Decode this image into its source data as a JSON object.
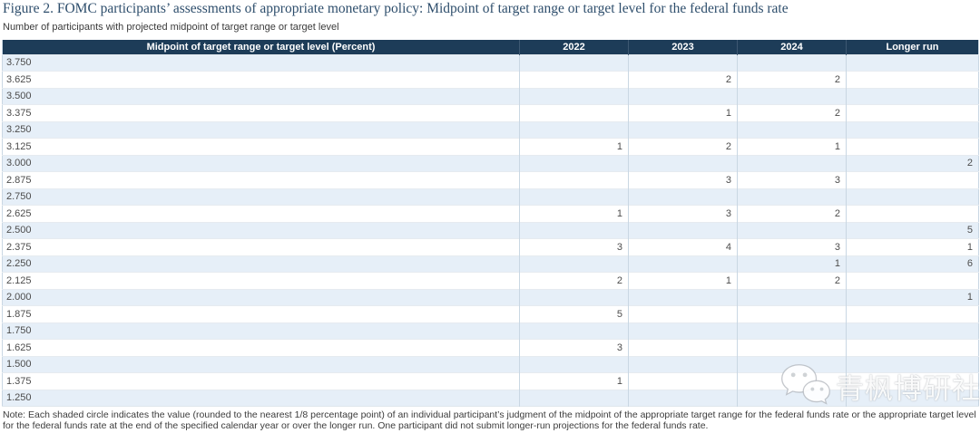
{
  "header": {
    "title": "Figure 2. FOMC participants’ assessments of appropriate monetary policy: Midpoint of target range or target level for the federal funds rate",
    "subtitle": "Number of participants with projected midpoint of target range or target level"
  },
  "chart_data": {
    "type": "table",
    "title": "Figure 2. FOMC participants’ assessments of appropriate monetary policy: Midpoint of target range or target level for the federal funds rate",
    "subtitle": "Number of participants with projected midpoint of target range or target level",
    "columns": [
      "Midpoint of target range or target level (Percent)",
      "2022",
      "2023",
      "2024",
      "Longer run"
    ],
    "rows": [
      {
        "rate": "3.750",
        "y2022": "",
        "y2023": "",
        "y2024": "",
        "longer_run": ""
      },
      {
        "rate": "3.625",
        "y2022": "",
        "y2023": "2",
        "y2024": "2",
        "longer_run": ""
      },
      {
        "rate": "3.500",
        "y2022": "",
        "y2023": "",
        "y2024": "",
        "longer_run": ""
      },
      {
        "rate": "3.375",
        "y2022": "",
        "y2023": "1",
        "y2024": "2",
        "longer_run": ""
      },
      {
        "rate": "3.250",
        "y2022": "",
        "y2023": "",
        "y2024": "",
        "longer_run": ""
      },
      {
        "rate": "3.125",
        "y2022": "1",
        "y2023": "2",
        "y2024": "1",
        "longer_run": ""
      },
      {
        "rate": "3.000",
        "y2022": "",
        "y2023": "",
        "y2024": "",
        "longer_run": "2"
      },
      {
        "rate": "2.875",
        "y2022": "",
        "y2023": "3",
        "y2024": "3",
        "longer_run": ""
      },
      {
        "rate": "2.750",
        "y2022": "",
        "y2023": "",
        "y2024": "",
        "longer_run": ""
      },
      {
        "rate": "2.625",
        "y2022": "1",
        "y2023": "3",
        "y2024": "2",
        "longer_run": ""
      },
      {
        "rate": "2.500",
        "y2022": "",
        "y2023": "",
        "y2024": "",
        "longer_run": "5"
      },
      {
        "rate": "2.375",
        "y2022": "3",
        "y2023": "4",
        "y2024": "3",
        "longer_run": "1"
      },
      {
        "rate": "2.250",
        "y2022": "",
        "y2023": "",
        "y2024": "1",
        "longer_run": "6"
      },
      {
        "rate": "2.125",
        "y2022": "2",
        "y2023": "1",
        "y2024": "2",
        "longer_run": ""
      },
      {
        "rate": "2.000",
        "y2022": "",
        "y2023": "",
        "y2024": "",
        "longer_run": "1"
      },
      {
        "rate": "1.875",
        "y2022": "5",
        "y2023": "",
        "y2024": "",
        "longer_run": ""
      },
      {
        "rate": "1.750",
        "y2022": "",
        "y2023": "",
        "y2024": "",
        "longer_run": ""
      },
      {
        "rate": "1.625",
        "y2022": "3",
        "y2023": "",
        "y2024": "",
        "longer_run": ""
      },
      {
        "rate": "1.500",
        "y2022": "",
        "y2023": "",
        "y2024": "",
        "longer_run": ""
      },
      {
        "rate": "1.375",
        "y2022": "1",
        "y2023": "",
        "y2024": "",
        "longer_run": ""
      },
      {
        "rate": "1.250",
        "y2022": "",
        "y2023": "",
        "y2024": "",
        "longer_run": ""
      }
    ],
    "layout": {
      "row_order": "rates descending 3.750 to 1.250 in 0.125 steps",
      "shading": "alternating rows, first row shaded",
      "grid": "vertical column separators, light horizontal row lines"
    }
  },
  "note": "Note: Each shaded circle indicates the value (rounded to the nearest 1/8 percentage point) of an individual participant’s judgment of the midpoint of the appropriate target range for the federal funds rate or the appropriate target level for the federal funds rate at the end of the specified calendar year or over the longer run. One participant did not submit longer-run projections for the federal funds rate.",
  "watermark": {
    "text": "青枫博研社",
    "icon": "wechat-icon"
  },
  "colors": {
    "header_bg": "#1d3c58",
    "row_shaded": "#e6eff8",
    "row_plain": "#ffffff",
    "title_text": "#2e4e6c",
    "column_border": "#c9d7e3"
  }
}
